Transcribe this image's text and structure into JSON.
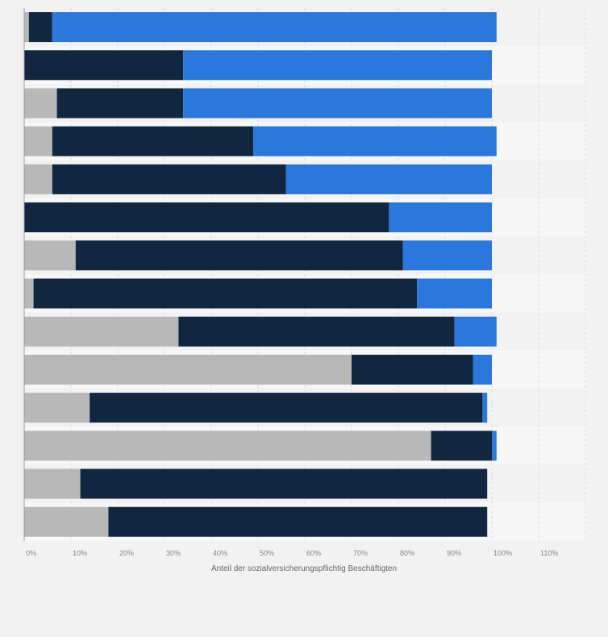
{
  "chart_data": {
    "type": "bar",
    "orientation": "horizontal",
    "stacked": true,
    "title": "",
    "xlabel": "Anteil der sozialversicherungspflichtig Beschäftigten",
    "ylabel": "",
    "xlim": [
      0,
      120
    ],
    "xticks": [
      "0%",
      "10%",
      "20%",
      "30%",
      "40%",
      "50%",
      "60%",
      "70%",
      "80%",
      "90%",
      "100%",
      "110%"
    ],
    "grid": true,
    "legend": "none",
    "categories": [
      "",
      "",
      "",
      "",
      "",
      "",
      "",
      "",
      "",
      "",
      "",
      "",
      "",
      ""
    ],
    "series": [
      {
        "color": "#b8b8b8",
        "values": [
          1,
          0,
          7,
          6,
          6,
          0,
          11,
          2,
          33,
          70,
          14,
          87,
          12,
          18
        ]
      },
      {
        "color": "#11263f",
        "values": [
          5,
          34,
          27,
          43,
          50,
          78,
          70,
          82,
          59,
          26,
          84,
          13,
          87,
          81
        ]
      },
      {
        "color": "#2a78dc",
        "values": [
          95,
          66,
          66,
          52,
          44,
          22,
          19,
          16,
          9,
          4,
          1,
          1,
          0,
          0
        ]
      }
    ]
  }
}
